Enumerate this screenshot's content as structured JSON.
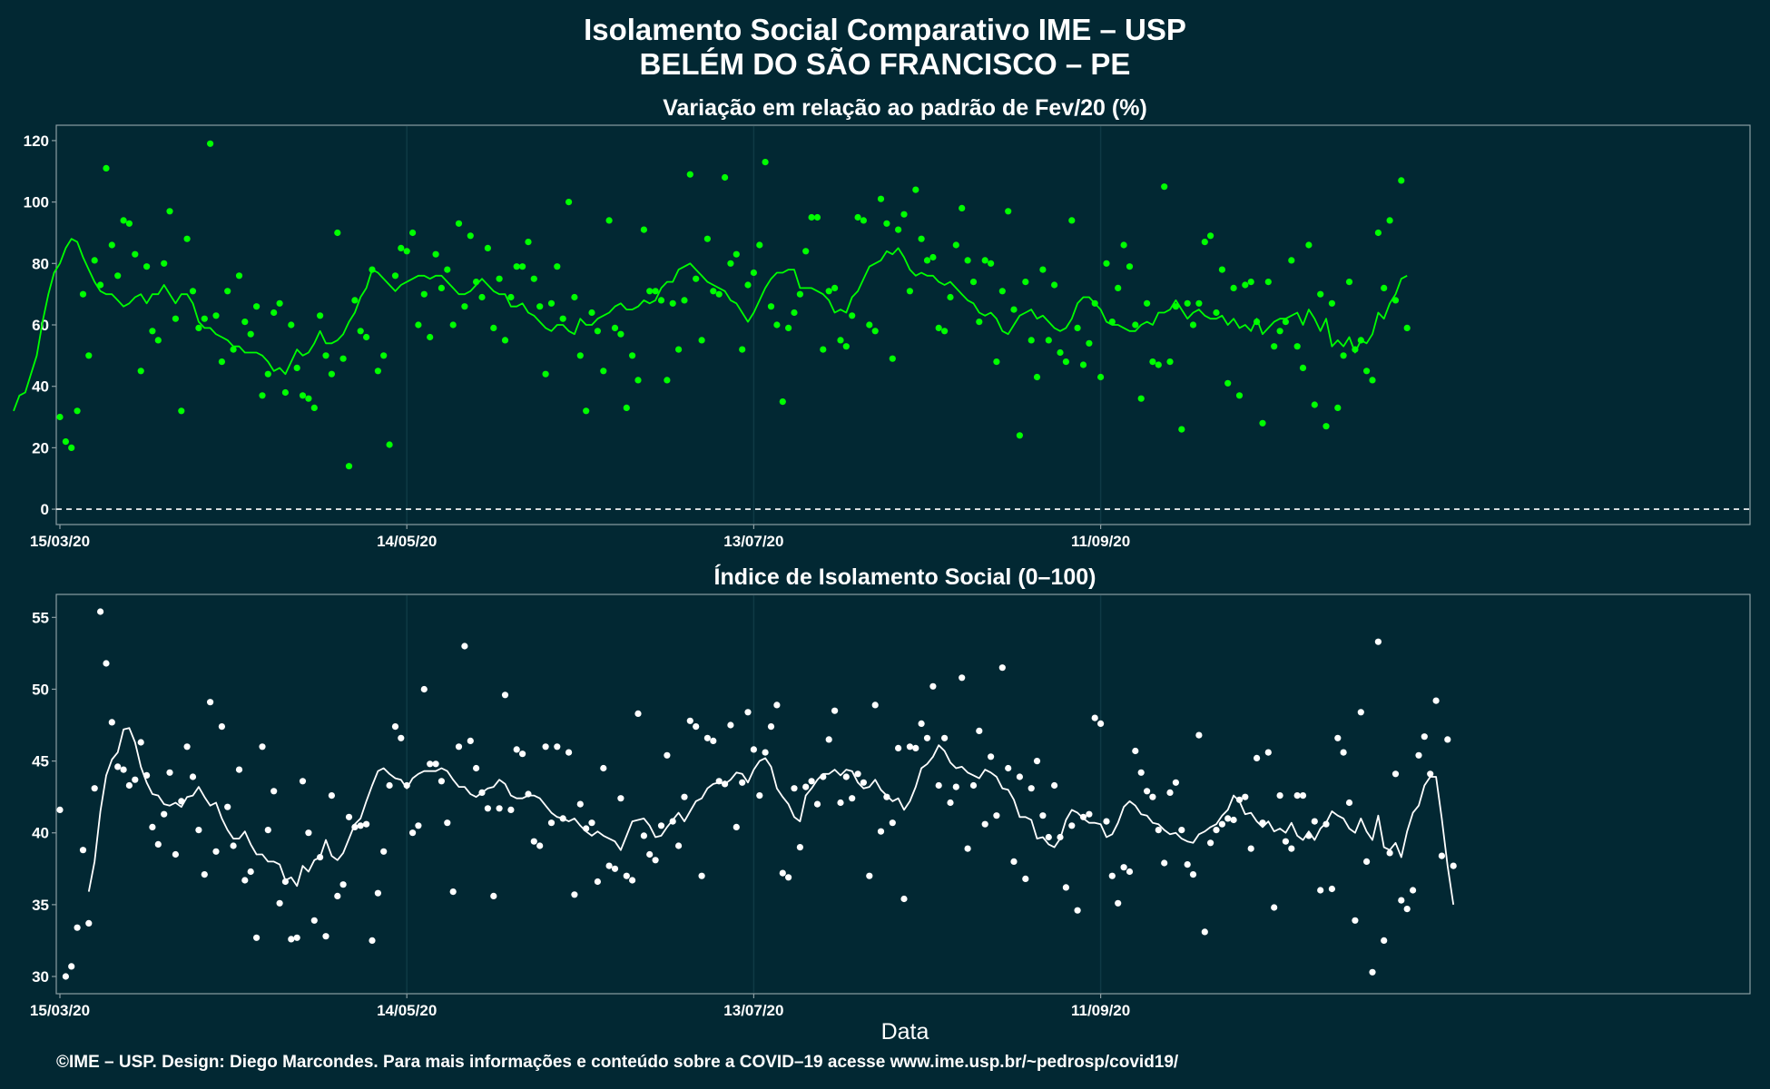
{
  "header": {
    "title_line1": "Isolamento Social Comparativo IME – USP",
    "title_line2": "BELÉM DO SÃO FRANCISCO – PE"
  },
  "x_axis_label": "Data",
  "caption": "©IME – USP. Design: Diego Marcondes. Para mais informações e conteúdo sobre a COVID–19 acesse www.ime.usp.br/~pedrosp/covid19/",
  "colors": {
    "background": "#022833",
    "top_series": "#00ff00",
    "bottom_series": "#ffffff"
  },
  "chart_data": [
    {
      "type": "scatter",
      "title": "Variação em relação ao padrão de Fev/20 (%)",
      "xlabel": "",
      "ylabel": "",
      "x_start": "15/03/20",
      "x_ticks": [
        "15/03/20",
        "14/05/20",
        "13/07/20",
        "11/09/20"
      ],
      "ylim": [
        -5,
        125
      ],
      "y_ticks": [
        0,
        20,
        40,
        60,
        80,
        100,
        120
      ],
      "reference_line": 0,
      "grid": true,
      "legend": "none",
      "series": [
        {
          "kind": "points",
          "values": [
            30,
            22,
            20,
            32,
            70,
            50,
            81,
            73,
            111,
            86,
            76,
            94,
            93,
            83,
            45,
            79,
            58,
            55,
            80,
            97,
            62,
            32,
            88,
            71,
            59,
            62,
            119,
            63,
            48,
            71,
            52,
            76,
            61,
            57,
            66,
            37,
            44,
            64,
            67,
            38,
            60,
            46,
            37,
            36,
            33,
            63,
            50,
            44,
            90,
            49,
            14,
            68,
            58,
            56,
            78,
            45,
            50,
            21,
            76,
            85,
            84,
            90,
            60,
            70,
            56,
            83,
            72,
            78,
            60,
            93,
            66,
            89,
            74,
            69,
            85,
            59,
            75,
            55,
            69,
            79,
            79,
            87,
            75,
            66,
            44,
            67,
            79,
            62,
            100,
            69,
            50,
            32,
            64,
            58,
            45,
            94,
            59,
            57,
            33,
            50,
            42,
            91,
            71,
            71,
            68,
            42,
            67,
            52,
            68,
            109,
            75,
            55,
            88,
            71,
            70,
            108,
            80,
            83,
            52,
            73,
            77,
            86,
            113,
            66,
            60,
            35,
            59,
            64,
            70,
            84,
            95,
            95,
            52,
            71,
            72,
            55,
            53,
            63,
            95,
            94,
            60,
            58,
            101,
            93,
            49,
            91,
            96,
            71,
            104,
            88,
            81,
            82,
            59,
            58,
            69,
            86,
            98,
            81,
            74,
            61,
            81,
            80,
            48,
            71,
            97,
            65,
            24,
            74,
            55,
            43,
            78,
            55,
            73,
            51,
            48,
            94,
            59,
            47,
            54,
            67,
            43,
            80,
            61,
            72,
            86,
            79,
            60,
            36,
            67,
            48,
            47,
            105,
            48,
            66,
            26,
            67,
            60,
            67,
            87,
            89,
            64,
            78,
            41,
            72,
            37,
            73,
            74,
            61,
            28,
            74,
            53,
            58,
            61,
            81,
            53,
            46,
            86,
            34,
            70,
            27,
            67,
            33,
            50,
            74,
            52,
            55,
            45,
            42,
            90,
            72,
            94,
            68,
            107,
            59
          ]
        },
        {
          "kind": "moving_average",
          "values": [
            32,
            37,
            38,
            44,
            50,
            61,
            70,
            77,
            80,
            85,
            88,
            87,
            82,
            78,
            74,
            71,
            70,
            70,
            68,
            66,
            67,
            69,
            70,
            67,
            70,
            70,
            73,
            70,
            67,
            70,
            70,
            67,
            61,
            59,
            59,
            57,
            56,
            55,
            53,
            53,
            51,
            51,
            51,
            50,
            48,
            45,
            46,
            44,
            48,
            52,
            50,
            51,
            54,
            58,
            54,
            54,
            55,
            57,
            61,
            64,
            69,
            72,
            78,
            77,
            75,
            73,
            71,
            73,
            74,
            75,
            76,
            76,
            75,
            76,
            76,
            74,
            72,
            70,
            70,
            71,
            73,
            75,
            73,
            71,
            70,
            70,
            66,
            66,
            67,
            64,
            63,
            61,
            59,
            58,
            60,
            60,
            58,
            57,
            62,
            60,
            60,
            62,
            63,
            64,
            66,
            67,
            65,
            65,
            66,
            68,
            67,
            68,
            72,
            74,
            74,
            78,
            79,
            80,
            78,
            76,
            74,
            73,
            72,
            71,
            68,
            67,
            64,
            61,
            64,
            68,
            72,
            75,
            77,
            77,
            78,
            78,
            72,
            72,
            72,
            71,
            70,
            68,
            64,
            65,
            64,
            69,
            71,
            75,
            79,
            80,
            81,
            84,
            83,
            85,
            82,
            78,
            76,
            77,
            76,
            76,
            74,
            73,
            74,
            72,
            70,
            68,
            67,
            64,
            63,
            64,
            62,
            58,
            57,
            60,
            63,
            64,
            65,
            62,
            63,
            61,
            59,
            58,
            59,
            62,
            67,
            69,
            69,
            67,
            65,
            61,
            60,
            60,
            59,
            58,
            58,
            60,
            61,
            60,
            64,
            64,
            65,
            68,
            65,
            62,
            64,
            65,
            63,
            62,
            62,
            63,
            60,
            62,
            59,
            60,
            58,
            62,
            57,
            59,
            61,
            62,
            62,
            63,
            64,
            60,
            65,
            62,
            58,
            62,
            53,
            55,
            53,
            56,
            51,
            55,
            54,
            57,
            64,
            62,
            67,
            70,
            75,
            76
          ]
        }
      ]
    },
    {
      "type": "scatter",
      "title": "Índice de Isolamento Social (0–100)",
      "xlabel": "Data",
      "ylabel": "",
      "x_start": "15/03/20",
      "x_ticks": [
        "15/03/20",
        "14/05/20",
        "13/07/20",
        "11/09/20"
      ],
      "ylim": [
        28.8,
        56.6
      ],
      "y_ticks": [
        30,
        35,
        40,
        45,
        50,
        55
      ],
      "grid": true,
      "legend": "none",
      "series": [
        {
          "kind": "points",
          "values": [
            41.6,
            30.0,
            30.7,
            33.4,
            38.8,
            33.7,
            43.1,
            55.4,
            51.8,
            47.7,
            44.6,
            44.4,
            43.3,
            43.7,
            46.3,
            44.0,
            40.4,
            39.2,
            41.3,
            44.2,
            38.5,
            42.2,
            46.0,
            43.9,
            40.2,
            37.1,
            49.1,
            38.7,
            47.4,
            41.8,
            39.1,
            44.4,
            36.7,
            37.3,
            32.7,
            46.0,
            40.2,
            42.9,
            35.1,
            36.6,
            32.6,
            32.7,
            43.6,
            40.0,
            33.9,
            38.3,
            32.8,
            42.6,
            35.6,
            36.4,
            41.1,
            40.4,
            40.5,
            40.6,
            32.5,
            35.8,
            38.7,
            43.3,
            47.4,
            46.6,
            43.3,
            40.0,
            40.5,
            50.0,
            44.8,
            44.8,
            43.6,
            40.7,
            35.9,
            46.0,
            53.0,
            46.4,
            44.5,
            42.8,
            41.7,
            35.6,
            41.7,
            49.6,
            41.6,
            45.8,
            45.5,
            42.7,
            39.4,
            39.1,
            46.0,
            40.7,
            46.0,
            41.0,
            45.6,
            35.7,
            42.0,
            40.3,
            40.7,
            36.6,
            44.5,
            37.7,
            37.5,
            42.4,
            37.0,
            36.7,
            48.3,
            39.8,
            38.5,
            38.1,
            40.5,
            45.4,
            40.8,
            39.1,
            42.5,
            47.8,
            47.4,
            37.0,
            46.6,
            46.4,
            43.6,
            43.4,
            47.5,
            40.4,
            43.5,
            48.4,
            45.8,
            42.6,
            45.6,
            47.4,
            48.9,
            37.2,
            36.9,
            43.1,
            39.0,
            43.2,
            43.6,
            42.0,
            43.9,
            46.5,
            48.5,
            42.1,
            43.9,
            42.4,
            44.1,
            43.5,
            37.0,
            48.9,
            40.1,
            42.5,
            40.7,
            45.9,
            35.4,
            46.0,
            45.9,
            47.6,
            46.6,
            50.2,
            43.3,
            46.6,
            42.1,
            43.2,
            50.8,
            38.9,
            43.3,
            47.1,
            40.6,
            45.3,
            41.2,
            51.5,
            44.5,
            38.0,
            43.9,
            36.8,
            43.1,
            45.0,
            41.2,
            39.7,
            43.3,
            39.7,
            36.2,
            40.5,
            34.6,
            41.1,
            41.3,
            48.0,
            47.6,
            40.8,
            37.0,
            35.1,
            37.6,
            37.3,
            45.7,
            44.2,
            42.9,
            42.5,
            40.2,
            37.9,
            42.8,
            43.5,
            40.2,
            37.8,
            37.1,
            46.8,
            33.1,
            39.3,
            40.2,
            40.6,
            41.0,
            40.9,
            42.3,
            42.5,
            38.9,
            45.2,
            40.7,
            45.6,
            34.8,
            42.6,
            39.4,
            38.9,
            42.6,
            42.6,
            39.8,
            40.8,
            36.0,
            40.6,
            36.1,
            46.6,
            45.6,
            42.1,
            33.9,
            48.4,
            38.0,
            30.3,
            53.3,
            32.5,
            38.6,
            44.1,
            35.3,
            34.7,
            36.0,
            45.4,
            46.7,
            44.1,
            49.2,
            38.4,
            46.5,
            37.7
          ]
        },
        {
          "kind": "moving_average",
          "values": [
            35.9,
            38.0,
            41.5,
            44.0,
            45.1,
            45.6,
            47.2,
            47.3,
            46.3,
            44.6,
            43.5,
            42.7,
            42.6,
            42.0,
            41.9,
            42.1,
            41.8,
            42.5,
            42.6,
            43.2,
            42.5,
            41.9,
            42.1,
            41.0,
            40.2,
            39.6,
            39.6,
            40.1,
            39.2,
            38.5,
            38.5,
            38.0,
            38.0,
            37.8,
            36.7,
            36.9,
            36.3,
            37.7,
            37.3,
            38.1,
            38.3,
            39.5,
            38.4,
            38.1,
            38.6,
            39.6,
            40.6,
            41.0,
            42.2,
            43.3,
            44.3,
            44.5,
            44.1,
            43.8,
            43.7,
            43.1,
            43.8,
            44.1,
            44.3,
            44.3,
            44.3,
            44.5,
            44.3,
            43.7,
            43.2,
            43.2,
            42.7,
            42.5,
            42.8,
            43.1,
            43.2,
            43.7,
            43.4,
            42.6,
            42.4,
            42.4,
            42.6,
            42.6,
            42.4,
            41.9,
            41.4,
            41.1,
            41.0,
            40.8,
            41.0,
            40.5,
            40.1,
            39.8,
            40.1,
            39.8,
            39.6,
            39.4,
            38.8,
            39.8,
            40.8,
            40.9,
            41.0,
            40.5,
            39.7,
            39.8,
            40.4,
            40.9,
            41.4,
            40.8,
            41.5,
            42.2,
            42.4,
            43.1,
            43.4,
            43.5,
            43.4,
            43.7,
            44.2,
            44.1,
            43.5,
            44.4,
            45.0,
            45.2,
            44.6,
            43.1,
            42.5,
            42.0,
            41.1,
            40.8,
            42.6,
            43.1,
            43.7,
            44.1,
            44.1,
            44.4,
            44.0,
            44.4,
            44.3,
            43.5,
            43.1,
            43.2,
            43.7,
            43.0,
            42.6,
            42.2,
            42.4,
            41.6,
            42.2,
            43.2,
            44.5,
            44.8,
            45.3,
            46.1,
            45.7,
            44.9,
            44.5,
            44.6,
            44.2,
            44.0,
            43.8,
            44.4,
            44.2,
            43.9,
            43.1,
            43.0,
            42.3,
            41.1,
            41.1,
            40.9,
            39.6,
            39.7,
            39.2,
            39.0,
            39.6,
            40.9,
            41.6,
            41.4,
            41.0,
            40.7,
            40.7,
            40.6,
            39.7,
            39.9,
            40.7,
            41.8,
            42.2,
            41.9,
            41.3,
            41.2,
            40.7,
            40.6,
            40.2,
            39.9,
            40.0,
            39.6,
            39.4,
            39.3,
            39.9,
            40.1,
            40.4,
            40.6,
            41.2,
            41.6,
            42.6,
            42.2,
            41.3,
            41.4,
            40.8,
            40.4,
            40.8,
            40.1,
            40.3,
            40.0,
            40.7,
            39.8,
            39.5,
            40.1,
            39.5,
            40.3,
            40.7,
            41.5,
            41.2,
            41.0,
            40.3,
            40.0,
            41.0,
            40.1,
            39.5,
            41.2,
            39.0,
            38.8,
            39.3,
            38.3,
            40.1,
            41.4,
            41.9,
            43.3,
            43.9,
            43.9,
            41.0,
            37.7,
            35.0
          ]
        }
      ]
    }
  ]
}
